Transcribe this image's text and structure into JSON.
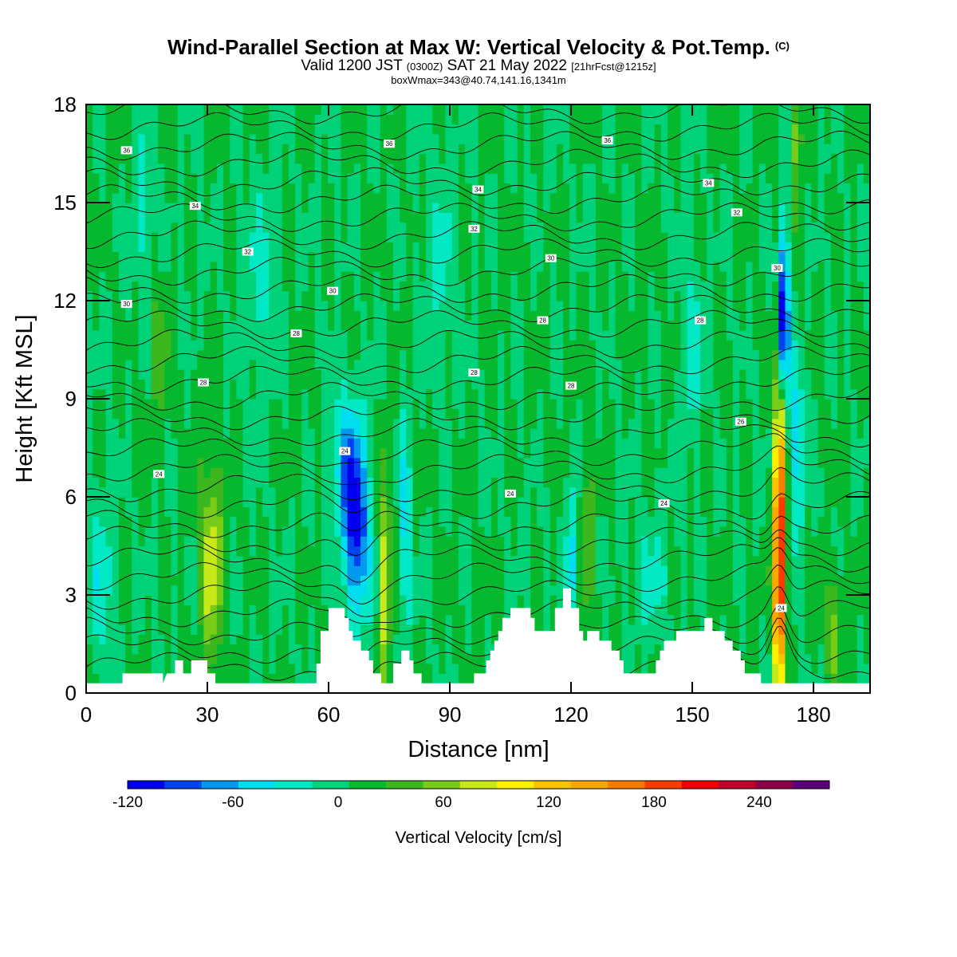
{
  "title": {
    "main": "Wind-Parallel Section at Max W: Vertical Velocity & Pot.Temp.",
    "copyright": "(C)",
    "valid_prefix": "Valid 1200 JST",
    "valid_utc": "(0300Z)",
    "valid_date": "SAT 21 May 2022",
    "forecast_info": "[21hrFcst@1215z]",
    "boxinfo": "boxWmax=343@40.74,141.16,1341m"
  },
  "chart_data": {
    "type": "heatmap",
    "xlabel": "Distance [nm]",
    "ylabel": "Height [Kft MSL]",
    "xlim": [
      0,
      194
    ],
    "ylim": [
      0,
      18
    ],
    "x_ticks": [
      "0",
      "30",
      "60",
      "90",
      "120",
      "150",
      "180"
    ],
    "y_ticks": [
      "0",
      "3",
      "6",
      "9",
      "12",
      "15",
      "18"
    ],
    "x_tick_values": [
      0,
      30,
      60,
      90,
      120,
      150,
      180
    ],
    "y_tick_values": [
      0,
      3,
      6,
      9,
      12,
      15,
      18
    ],
    "colorbar": {
      "title": "Vertical Velocity [cm/s]",
      "labels": [
        "-120",
        "-60",
        "0",
        "60",
        "120",
        "180",
        "240"
      ],
      "label_values": [
        -120,
        -60,
        0,
        60,
        120,
        180,
        240
      ],
      "bounds": [
        -120,
        280
      ],
      "colors": [
        "#0000ee",
        "#0044ee",
        "#0099ee",
        "#00ddee",
        "#00e8c4",
        "#00d27a",
        "#06b82e",
        "#3cb81e",
        "#78cc18",
        "#c8e818",
        "#fff000",
        "#f8c400",
        "#f8a800",
        "#f87c00",
        "#f83c00",
        "#f00000",
        "#c00028",
        "#8c0048",
        "#5a0078"
      ]
    },
    "contour_labels": [
      "36",
      "36",
      "36",
      "34",
      "34",
      "34",
      "32",
      "32",
      "32",
      "30",
      "30",
      "30",
      "30",
      "28",
      "28",
      "28",
      "28",
      "28",
      "28",
      "26",
      "24",
      "24",
      "24",
      "24",
      "24"
    ],
    "contour_levels": [
      22,
      24,
      26,
      28,
      30,
      32,
      34,
      36
    ],
    "features": [
      {
        "label": "updraft core",
        "x_nm": 171.5,
        "height_kft": 1.0,
        "top_kft": 9.0,
        "w_max_cms": 250
      },
      {
        "label": "downdraft",
        "x_nm": 67,
        "height_kft": 5.0,
        "w_min_cms": -90
      },
      {
        "label": "downdraft aloft",
        "x_nm": 172.5,
        "height_kft": 11.5,
        "w_min_cms": -120
      },
      {
        "label": "updraft",
        "x_nm": 31,
        "height_kft": 4.0,
        "w_max_cms": 80
      },
      {
        "label": "updraft",
        "x_nm": 74,
        "height_kft": 3.5,
        "w_max_cms": 100
      }
    ],
    "terrain": [
      [
        0,
        0.3
      ],
      [
        9,
        0.3
      ],
      [
        9,
        0.6
      ],
      [
        19,
        0.6
      ],
      [
        19,
        0.3
      ],
      [
        20,
        0.6
      ],
      [
        22,
        0.6
      ],
      [
        22,
        1.0
      ],
      [
        24,
        1.0
      ],
      [
        24,
        0.6
      ],
      [
        26,
        0.6
      ],
      [
        26,
        1.0
      ],
      [
        30,
        1.0
      ],
      [
        30,
        0.6
      ],
      [
        32,
        0.6
      ],
      [
        32,
        0.3
      ],
      [
        57,
        0.3
      ],
      [
        57,
        0.9
      ],
      [
        58,
        0.9
      ],
      [
        58,
        1.9
      ],
      [
        60,
        1.9
      ],
      [
        60,
        2.6
      ],
      [
        64,
        2.6
      ],
      [
        64,
        2.3
      ],
      [
        65,
        2.3
      ],
      [
        65,
        1.9
      ],
      [
        66,
        1.9
      ],
      [
        66,
        1.6
      ],
      [
        68,
        1.6
      ],
      [
        68,
        1.3
      ],
      [
        70,
        1.3
      ],
      [
        70,
        1.0
      ],
      [
        71,
        1.0
      ],
      [
        71,
        0.6
      ],
      [
        73,
        0.6
      ],
      [
        73,
        0.3
      ],
      [
        76,
        0.3
      ],
      [
        76,
        0.9
      ],
      [
        78,
        0.9
      ],
      [
        78,
        1.3
      ],
      [
        80,
        1.3
      ],
      [
        80,
        1.0
      ],
      [
        81,
        1.0
      ],
      [
        81,
        0.6
      ],
      [
        83,
        0.6
      ],
      [
        83,
        0.3
      ],
      [
        96,
        0.3
      ],
      [
        96,
        0.6
      ],
      [
        99,
        0.6
      ],
      [
        99,
        1.0
      ],
      [
        100,
        1.0
      ],
      [
        100,
        1.3
      ],
      [
        101,
        1.3
      ],
      [
        101,
        1.6
      ],
      [
        102,
        1.6
      ],
      [
        102,
        1.9
      ],
      [
        103,
        1.9
      ],
      [
        103,
        2.3
      ],
      [
        105,
        2.3
      ],
      [
        105,
        2.6
      ],
      [
        110,
        2.6
      ],
      [
        110,
        2.3
      ],
      [
        111,
        2.3
      ],
      [
        111,
        1.9
      ],
      [
        116,
        1.9
      ],
      [
        116,
        2.6
      ],
      [
        118,
        2.6
      ],
      [
        118,
        3.2
      ],
      [
        120,
        3.2
      ],
      [
        120,
        2.6
      ],
      [
        122,
        2.6
      ],
      [
        122,
        1.9
      ],
      [
        123,
        1.9
      ],
      [
        123,
        1.6
      ],
      [
        124,
        1.6
      ],
      [
        124,
        1.9
      ],
      [
        127,
        1.9
      ],
      [
        127,
        1.6
      ],
      [
        130,
        1.6
      ],
      [
        130,
        1.3
      ],
      [
        132,
        1.3
      ],
      [
        132,
        1.0
      ],
      [
        133,
        1.0
      ],
      [
        133,
        0.6
      ],
      [
        141,
        0.6
      ],
      [
        141,
        1.0
      ],
      [
        142,
        1.0
      ],
      [
        142,
        1.3
      ],
      [
        143,
        1.3
      ],
      [
        143,
        1.6
      ],
      [
        146,
        1.6
      ],
      [
        146,
        1.9
      ],
      [
        153,
        1.9
      ],
      [
        153,
        2.3
      ],
      [
        155,
        2.3
      ],
      [
        155,
        1.9
      ],
      [
        158,
        1.9
      ],
      [
        158,
        1.6
      ],
      [
        160,
        1.6
      ],
      [
        160,
        1.3
      ],
      [
        162,
        1.3
      ],
      [
        162,
        1.0
      ],
      [
        163,
        1.0
      ],
      [
        163,
        0.6
      ],
      [
        167,
        0.6
      ],
      [
        167,
        0.3
      ],
      [
        194,
        0.3
      ],
      [
        194,
        0
      ]
    ]
  }
}
